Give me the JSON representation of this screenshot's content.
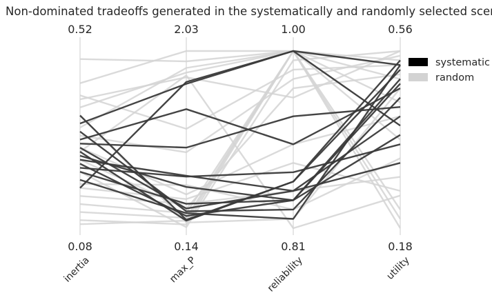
{
  "chart_data": {
    "type": "parallel_coordinates",
    "title": "Non-dominated tradeoffs generated in the systematically and randomly selected scenarios",
    "axes": [
      {
        "name": "inertia",
        "max": "0.52",
        "min": "0.08",
        "range": [
          0.08,
          0.52
        ]
      },
      {
        "name": "max_P",
        "max": "2.03",
        "min": "0.14",
        "range": [
          0.14,
          2.03
        ]
      },
      {
        "name": "reliability",
        "max": "1.00",
        "min": "0.81",
        "range": [
          0.81,
          1.0
        ]
      },
      {
        "name": "utility",
        "max": "0.56",
        "min": "0.18",
        "range": [
          0.18,
          0.56
        ]
      }
    ],
    "grid": true,
    "legend_position": "right",
    "colors": {
      "systematic": "#000000",
      "random": "#d3d3d3",
      "axis": "#cccccc"
    },
    "series": [
      {
        "name": "systematic",
        "points": [
          [
            0.34,
            1.68,
            1.0,
            0.53
          ],
          [
            0.3,
            1.41,
            0.9,
            0.48
          ],
          [
            0.23,
            0.69,
            0.87,
            0.36
          ],
          [
            0.26,
            0.58,
            0.84,
            0.38
          ],
          [
            0.28,
            0.35,
            0.85,
            0.42
          ],
          [
            0.32,
            0.32,
            0.83,
            0.46
          ],
          [
            0.24,
            0.27,
            0.84,
            0.49
          ],
          [
            0.27,
            0.22,
            0.86,
            0.52
          ],
          [
            0.22,
            0.4,
            0.84,
            0.5
          ],
          [
            0.2,
            0.3,
            0.82,
            0.53
          ],
          [
            0.36,
            0.23,
            0.86,
            0.54
          ],
          [
            0.18,
            1.7,
            1.0,
            0.4
          ],
          [
            0.29,
            1.0,
            0.93,
            0.44
          ],
          [
            0.25,
            0.7,
            0.85,
            0.32
          ]
        ]
      },
      {
        "name": "random",
        "points": [
          [
            0.5,
            1.92,
            1.0,
            0.5
          ],
          [
            0.44,
            2.03,
            1.0,
            0.54
          ],
          [
            0.4,
            1.75,
            0.95,
            0.56
          ],
          [
            0.33,
            1.85,
            1.0,
            0.45
          ],
          [
            0.14,
            0.3,
            1.0,
            0.22
          ],
          [
            0.1,
            0.18,
            1.0,
            0.18
          ],
          [
            0.16,
            0.4,
            0.85,
            0.29
          ],
          [
            0.27,
            1.77,
            0.81,
            0.25
          ],
          [
            0.12,
            0.25,
            1.0,
            0.2
          ],
          [
            0.19,
            0.6,
            0.83,
            0.33
          ],
          [
            0.31,
            0.95,
            0.97,
            0.55
          ],
          [
            0.36,
            0.2,
            0.82,
            0.48
          ],
          [
            0.22,
            0.15,
            0.99,
            0.56
          ],
          [
            0.41,
            1.2,
            0.98,
            0.53
          ],
          [
            0.28,
            0.5,
            0.9,
            0.42
          ],
          [
            0.09,
            0.22,
            1.0,
            0.4
          ],
          [
            0.25,
            0.35,
            0.96,
            0.51
          ],
          [
            0.38,
            1.8,
            1.0,
            0.37
          ],
          [
            0.18,
            0.45,
            0.88,
            0.26
          ]
        ]
      }
    ]
  }
}
